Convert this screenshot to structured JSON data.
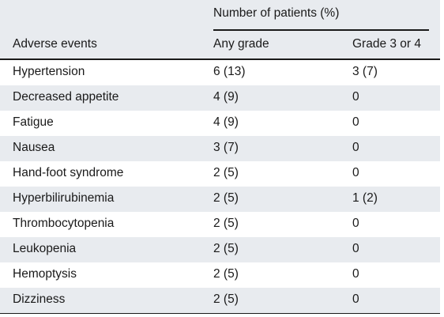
{
  "table": {
    "group_header": "Number of patients (%)",
    "columns": [
      "Adverse events",
      "Any grade",
      "Grade 3 or 4"
    ],
    "rows": [
      [
        "Hypertension",
        "6 (13)",
        "3 (7)"
      ],
      [
        "Decreased appetite",
        "4 (9)",
        "0"
      ],
      [
        "Fatigue",
        "4 (9)",
        "0"
      ],
      [
        "Nausea",
        "3 (7)",
        "0"
      ],
      [
        "Hand-foot syndrome",
        "2 (5)",
        "0"
      ],
      [
        "Hyperbilirubinemia",
        "2 (5)",
        "1 (2)"
      ],
      [
        "Thrombocytopenia",
        "2 (5)",
        "0"
      ],
      [
        "Leukopenia",
        "2 (5)",
        "0"
      ],
      [
        "Hemoptysis",
        "2 (5)",
        "0"
      ],
      [
        "Dizziness",
        "2 (5)",
        "0"
      ]
    ]
  },
  "colors": {
    "row_shade": "#e8ebef",
    "row_plain": "#ffffff",
    "text": "#1a1a1a"
  }
}
